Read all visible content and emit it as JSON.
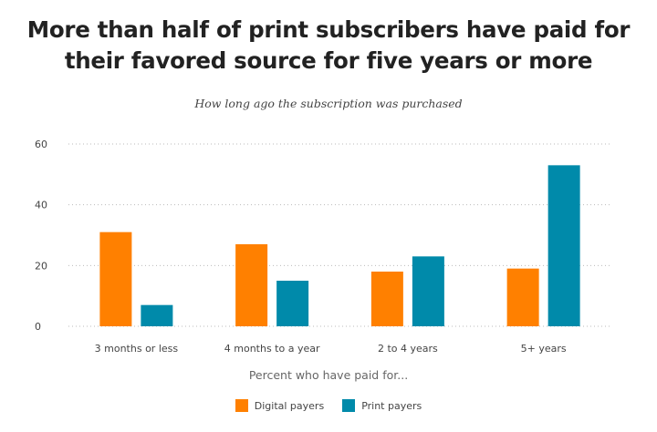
{
  "title": "More than half of print subscribers have paid for their favored source for five years or more",
  "subtitle": "How long ago the subscription was purchased",
  "chart_data": {
    "type": "bar",
    "title": "More than half of print subscribers have paid for their favored source for five years or more",
    "subtitle": "How long ago the subscription was purchased",
    "xlabel": "Percent who have paid for...",
    "ylabel": "",
    "categories": [
      "3 months or less",
      "4 months to a year",
      "2 to 4 years",
      "5+ years"
    ],
    "series": [
      {
        "name": "Digital payers",
        "color": "#FF8000",
        "values": [
          31,
          27,
          18,
          19
        ]
      },
      {
        "name": "Print payers",
        "color": "#008AAA",
        "values": [
          7,
          15,
          23,
          53
        ]
      }
    ],
    "ylim": [
      0,
      60
    ],
    "yticks": [
      0,
      20,
      40,
      60
    ],
    "grid": true,
    "legend_position": "bottom-center"
  }
}
